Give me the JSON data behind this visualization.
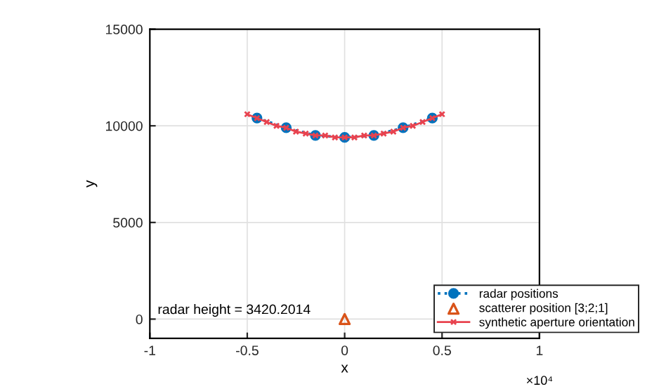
{
  "chart_data": {
    "type": "line",
    "xlabel": "x",
    "ylabel": "y",
    "xlim": [
      -1,
      1
    ],
    "ylim": [
      -1000,
      15000
    ],
    "xticks": [
      -1,
      -0.5,
      0,
      0.5,
      1
    ],
    "yticks": [
      0,
      5000,
      10000,
      15000
    ],
    "grid": true,
    "legend": "bottom right",
    "series": [
      {
        "name": "radar positions",
        "color": "#0072bd",
        "marker": "circle",
        "line_style": "dotted",
        "x": [
          -0.45,
          -0.3,
          -0.15,
          0,
          0.15,
          0.3,
          0.45
        ],
        "values": [
          10400,
          9900,
          9500,
          9400,
          9500,
          9900,
          10400
        ]
      },
      {
        "name": "scatterer position [3;2;1]",
        "type": "scatter",
        "color": "#d95319",
        "marker": "triangle",
        "x": [
          0
        ],
        "values": [
          0
        ]
      },
      {
        "name": "synthetic aperture orientation",
        "color": "#e8434f",
        "marker": "cross",
        "line_style": "solid",
        "x": [
          -0.5,
          -0.45,
          -0.4,
          -0.35,
          -0.3,
          -0.25,
          -0.2,
          -0.15,
          -0.1,
          -0.05,
          0,
          0.05,
          0.1,
          0.15,
          0.2,
          0.25,
          0.3,
          0.35,
          0.4,
          0.45,
          0.5
        ],
        "values": [
          10600,
          10400,
          10200,
          10000,
          9900,
          9700,
          9600,
          9500,
          9500,
          9400,
          9400,
          9400,
          9500,
          9500,
          9600,
          9700,
          9900,
          10000,
          10200,
          10400,
          10600
        ]
      }
    ],
    "annotations": [
      "radar height = 3420.2014",
      "×10⁴"
    ]
  }
}
